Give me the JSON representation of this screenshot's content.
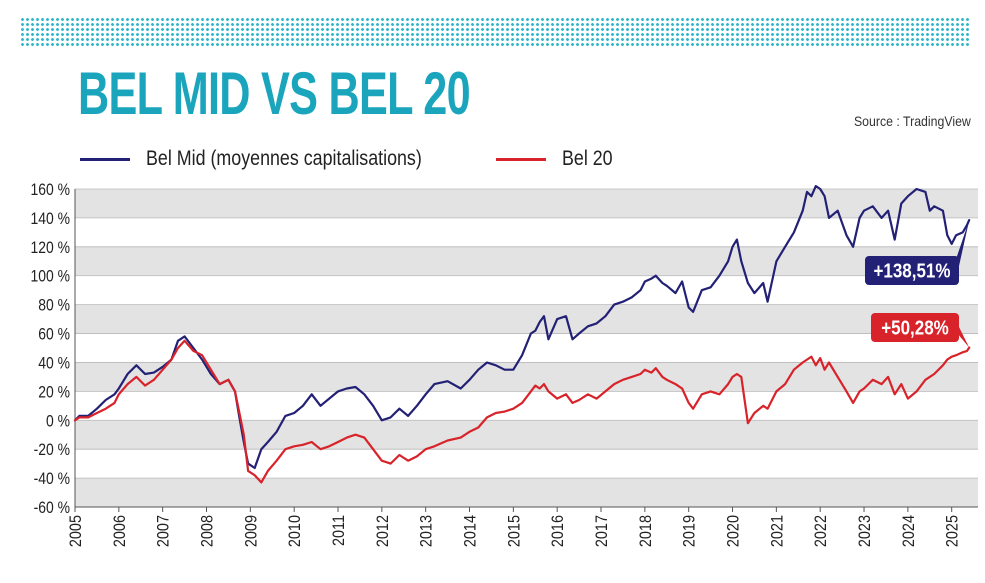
{
  "page": {
    "title": "BEL MID VS BEL 20",
    "source": "Source : TradingView"
  },
  "colors": {
    "accent": "#1ba5bd",
    "bel_mid": "#232175",
    "bel_20": "#d8232a",
    "band": "#e3e3e3"
  },
  "chart_data": {
    "type": "line",
    "title": "BEL MID VS BEL 20",
    "xlabel": "",
    "ylabel": "",
    "xlim": [
      2005,
      2025.6
    ],
    "ylim": [
      -60,
      160
    ],
    "y_ticks": [
      160,
      140,
      120,
      100,
      80,
      60,
      40,
      20,
      0,
      -20,
      -40,
      -60
    ],
    "y_tick_labels": [
      "160 %",
      "140 %",
      "120 %",
      "100 %",
      "80 %",
      "60 %",
      "40 %",
      "20 %",
      "0 %",
      "-20 %",
      "-40 %",
      "-60 %"
    ],
    "x_ticks": [
      "2005",
      "2006",
      "2007",
      "2008",
      "2009",
      "2010",
      "2011",
      "2012",
      "2013",
      "2014",
      "2015",
      "2016",
      "2017",
      "2018",
      "2019",
      "2020",
      "2021",
      "2022",
      "2023",
      "2024",
      "2025"
    ],
    "grid": "alternating horizontal bands",
    "legend_position": "top-left",
    "series": [
      {
        "name": "Bel Mid (moyennes capitalisations)",
        "end_label": "+138,51%",
        "x": [
          2005.0,
          2005.1,
          2005.3,
          2005.5,
          2005.7,
          2005.9,
          2006.0,
          2006.2,
          2006.4,
          2006.6,
          2006.8,
          2007.0,
          2007.2,
          2007.35,
          2007.5,
          2007.7,
          2007.9,
          2008.1,
          2008.3,
          2008.5,
          2008.65,
          2008.75,
          2008.85,
          2008.95,
          2009.1,
          2009.25,
          2009.4,
          2009.6,
          2009.8,
          2010.0,
          2010.2,
          2010.4,
          2010.6,
          2010.8,
          2011.0,
          2011.2,
          2011.4,
          2011.6,
          2011.8,
          2012.0,
          2012.2,
          2012.4,
          2012.6,
          2012.8,
          2013.0,
          2013.2,
          2013.5,
          2013.8,
          2014.0,
          2014.2,
          2014.4,
          2014.6,
          2014.8,
          2015.0,
          2015.2,
          2015.4,
          2015.5,
          2015.6,
          2015.7,
          2015.8,
          2016.0,
          2016.2,
          2016.35,
          2016.5,
          2016.7,
          2016.9,
          2017.1,
          2017.3,
          2017.5,
          2017.7,
          2017.9,
          2018.0,
          2018.15,
          2018.25,
          2018.4,
          2018.5,
          2018.7,
          2018.85,
          2019.0,
          2019.1,
          2019.3,
          2019.5,
          2019.7,
          2019.9,
          2020.0,
          2020.1,
          2020.2,
          2020.35,
          2020.5,
          2020.7,
          2020.8,
          2021.0,
          2021.2,
          2021.4,
          2021.6,
          2021.7,
          2021.8,
          2021.9,
          2022.0,
          2022.1,
          2022.2,
          2022.4,
          2022.6,
          2022.75,
          2022.9,
          2023.0,
          2023.2,
          2023.4,
          2023.55,
          2023.7,
          2023.85,
          2024.0,
          2024.2,
          2024.4,
          2024.5,
          2024.6,
          2024.8,
          2024.9,
          2025.0,
          2025.1,
          2025.25,
          2025.35,
          2025.4
        ],
        "values": [
          0,
          3,
          3,
          8,
          14,
          18,
          22,
          32,
          38,
          32,
          33,
          37,
          42,
          55,
          58,
          50,
          42,
          32,
          25,
          28,
          20,
          2,
          -15,
          -30,
          -33,
          -20,
          -15,
          -8,
          3,
          5,
          10,
          18,
          10,
          15,
          20,
          22,
          23,
          18,
          10,
          0,
          2,
          8,
          3,
          10,
          18,
          25,
          27,
          22,
          28,
          35,
          40,
          38,
          35,
          35,
          45,
          60,
          62,
          68,
          72,
          56,
          70,
          72,
          56,
          60,
          65,
          67,
          72,
          80,
          82,
          85,
          90,
          96,
          98,
          100,
          95,
          93,
          88,
          96,
          78,
          75,
          90,
          92,
          100,
          110,
          120,
          125,
          110,
          95,
          88,
          95,
          82,
          110,
          120,
          130,
          145,
          158,
          155,
          162,
          160,
          155,
          140,
          145,
          128,
          120,
          140,
          145,
          148,
          140,
          145,
          125,
          150,
          155,
          160,
          158,
          145,
          148,
          145,
          128,
          122,
          128,
          130,
          135,
          138.51
        ]
      },
      {
        "name": "Bel 20",
        "end_label": "+50,28%",
        "x": [
          2005.0,
          2005.1,
          2005.3,
          2005.5,
          2005.7,
          2005.9,
          2006.0,
          2006.2,
          2006.4,
          2006.6,
          2006.8,
          2007.0,
          2007.2,
          2007.35,
          2007.5,
          2007.7,
          2007.9,
          2008.1,
          2008.3,
          2008.5,
          2008.65,
          2008.75,
          2008.85,
          2008.95,
          2009.1,
          2009.25,
          2009.4,
          2009.6,
          2009.8,
          2010.0,
          2010.2,
          2010.4,
          2010.6,
          2010.8,
          2011.0,
          2011.2,
          2011.4,
          2011.6,
          2011.8,
          2012.0,
          2012.2,
          2012.4,
          2012.6,
          2012.8,
          2013.0,
          2013.2,
          2013.5,
          2013.8,
          2014.0,
          2014.2,
          2014.4,
          2014.6,
          2014.8,
          2015.0,
          2015.2,
          2015.4,
          2015.5,
          2015.6,
          2015.7,
          2015.8,
          2016.0,
          2016.2,
          2016.35,
          2016.5,
          2016.7,
          2016.9,
          2017.1,
          2017.3,
          2017.5,
          2017.7,
          2017.9,
          2018.0,
          2018.15,
          2018.25,
          2018.4,
          2018.5,
          2018.7,
          2018.85,
          2019.0,
          2019.1,
          2019.3,
          2019.5,
          2019.7,
          2019.9,
          2020.0,
          2020.1,
          2020.2,
          2020.35,
          2020.5,
          2020.7,
          2020.8,
          2021.0,
          2021.2,
          2021.4,
          2021.6,
          2021.7,
          2021.8,
          2021.9,
          2022.0,
          2022.1,
          2022.2,
          2022.4,
          2022.6,
          2022.75,
          2022.9,
          2023.0,
          2023.2,
          2023.4,
          2023.55,
          2023.7,
          2023.85,
          2024.0,
          2024.2,
          2024.4,
          2024.5,
          2024.6,
          2024.8,
          2024.9,
          2025.0,
          2025.1,
          2025.25,
          2025.35,
          2025.4
        ],
        "values": [
          0,
          2,
          2,
          5,
          8,
          12,
          18,
          25,
          30,
          24,
          28,
          35,
          42,
          50,
          55,
          48,
          45,
          35,
          25,
          28,
          20,
          5,
          -10,
          -35,
          -38,
          -43,
          -35,
          -28,
          -20,
          -18,
          -17,
          -15,
          -20,
          -18,
          -15,
          -12,
          -10,
          -12,
          -20,
          -28,
          -30,
          -24,
          -28,
          -25,
          -20,
          -18,
          -14,
          -12,
          -8,
          -5,
          2,
          5,
          6,
          8,
          12,
          20,
          24,
          22,
          25,
          20,
          15,
          18,
          12,
          14,
          18,
          15,
          20,
          25,
          28,
          30,
          32,
          35,
          33,
          36,
          30,
          28,
          25,
          22,
          12,
          8,
          18,
          20,
          18,
          25,
          30,
          32,
          30,
          -2,
          5,
          10,
          8,
          20,
          25,
          35,
          40,
          42,
          44,
          38,
          43,
          35,
          40,
          30,
          20,
          12,
          20,
          22,
          28,
          25,
          30,
          18,
          25,
          15,
          20,
          28,
          30,
          32,
          38,
          42,
          44,
          45,
          47,
          48,
          50.28
        ]
      }
    ]
  }
}
